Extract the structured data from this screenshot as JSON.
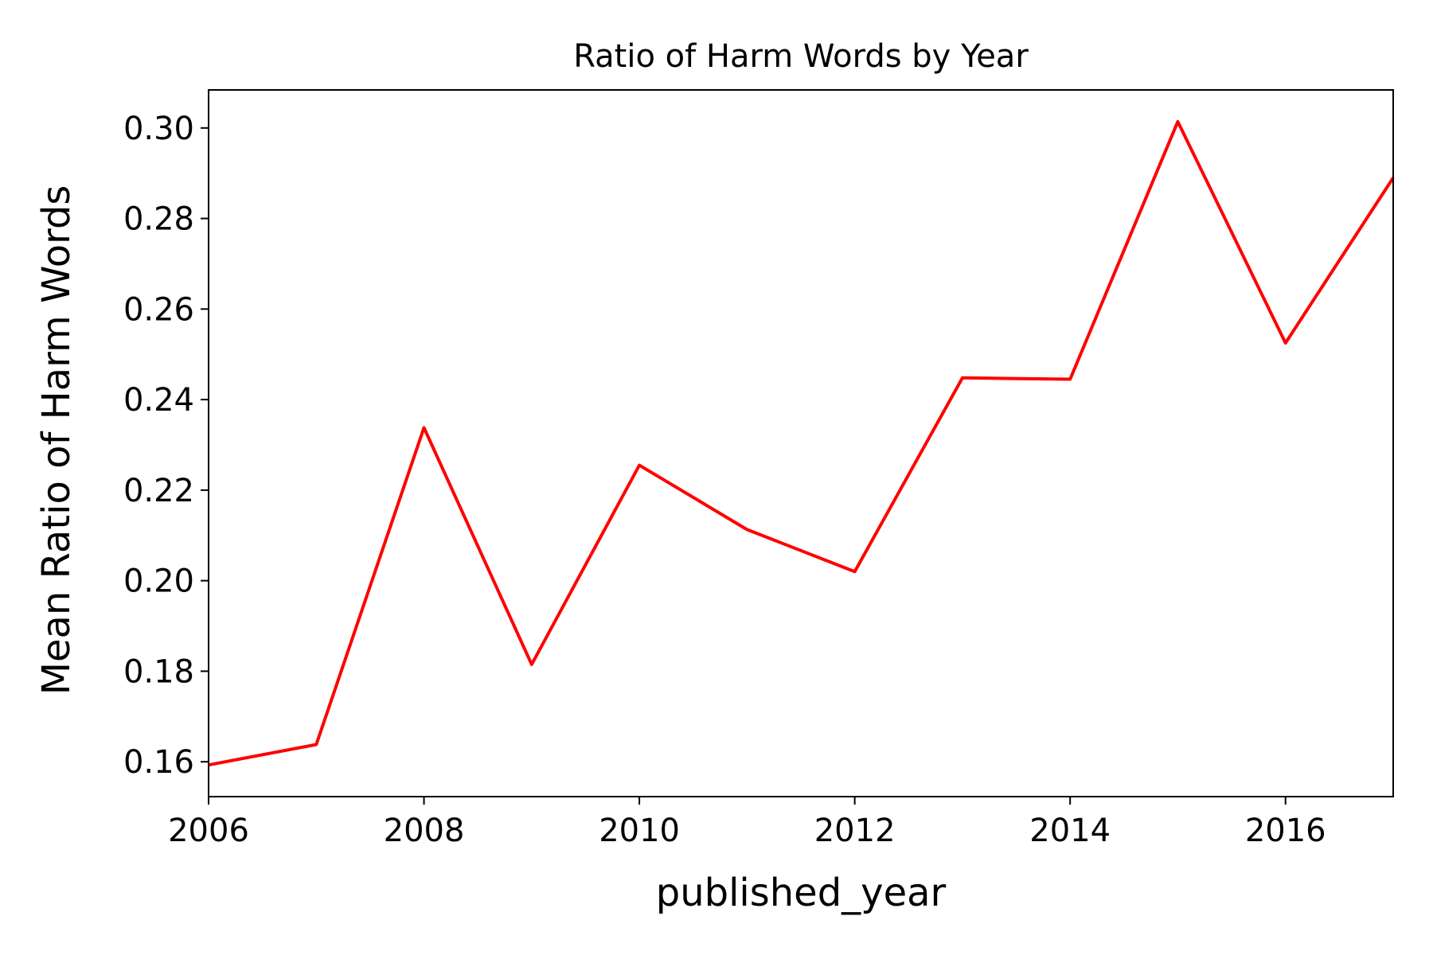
{
  "chart_data": {
    "type": "line",
    "title": "Ratio of Harm Words by Year",
    "xlabel": "published_year",
    "ylabel": "Mean Ratio of Harm Words",
    "x": [
      2006,
      2007,
      2008,
      2009,
      2010,
      2011,
      2012,
      2013,
      2014,
      2015,
      2016,
      2017
    ],
    "series": [
      {
        "values": [
          0.1593,
          0.1638,
          0.2338,
          0.1815,
          0.2255,
          0.2113,
          0.202,
          0.2448,
          0.2445,
          0.3014,
          0.2525,
          0.289
        ],
        "color": "#ff0000"
      }
    ],
    "xlim": [
      2006,
      2017
    ],
    "ylim": [
      0.1523,
      0.3084
    ],
    "xticks": [
      "2006",
      "2008",
      "2010",
      "2012",
      "2014",
      "2016"
    ],
    "yticks": [
      "0.16",
      "0.18",
      "0.20",
      "0.22",
      "0.24",
      "0.26",
      "0.28",
      "0.30"
    ],
    "grid": false
  }
}
